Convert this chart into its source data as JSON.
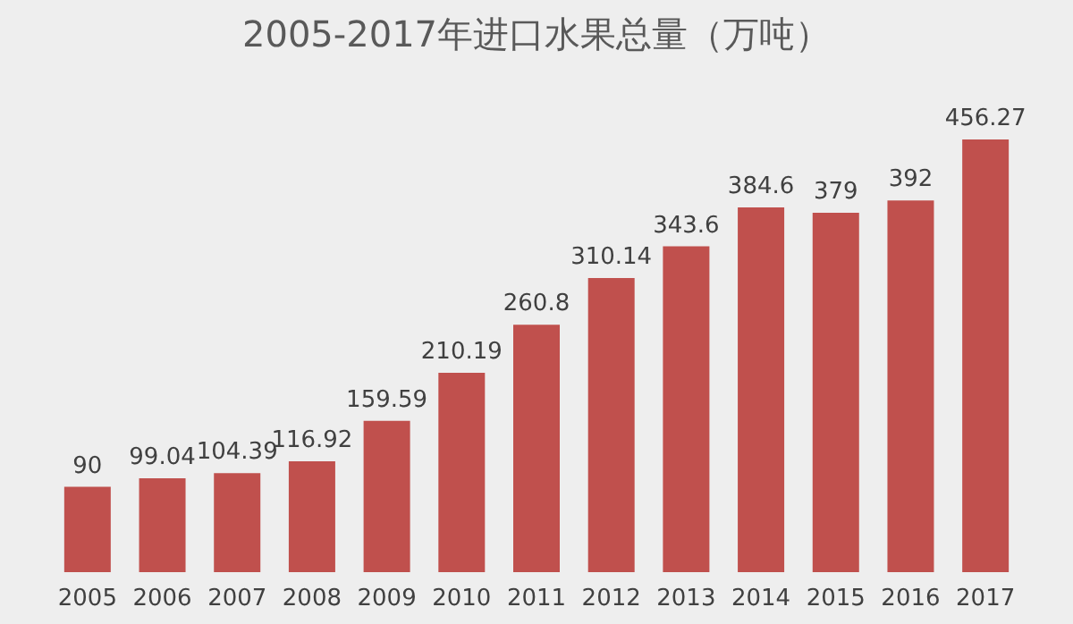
{
  "chart_data": {
    "type": "bar",
    "title": "2005-2017年进口水果总量（万吨）",
    "categories": [
      "2005",
      "2006",
      "2007",
      "2008",
      "2009",
      "2010",
      "2011",
      "2012",
      "2013",
      "2014",
      "2015",
      "2016",
      "2017"
    ],
    "values": [
      90,
      99.04,
      104.39,
      116.92,
      159.59,
      210.19,
      260.8,
      310.14,
      343.6,
      384.6,
      379,
      392,
      456.27
    ],
    "color": "#c0504d",
    "data_labels": true
  }
}
